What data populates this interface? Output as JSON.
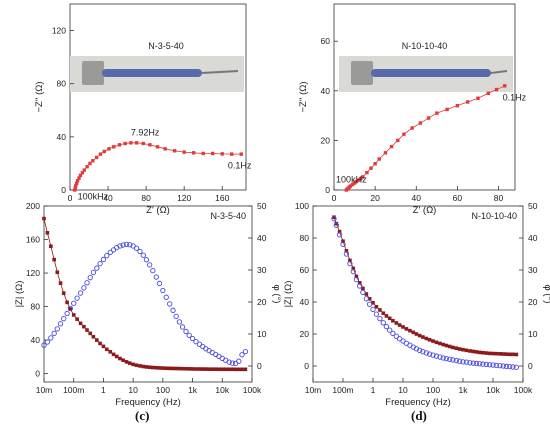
{
  "panels": {
    "c": {
      "label": "(c)"
    },
    "d": {
      "label": "(d)"
    }
  },
  "chart_data": [
    {
      "id": "a",
      "type": "line",
      "title": "N-3-5-40",
      "xlabel": "Z' (Ω)",
      "ylabel": "−Z'' (Ω)",
      "xlim": [
        0,
        185
      ],
      "ylim": [
        0,
        140
      ],
      "xticks": [
        0,
        40,
        80,
        120,
        160
      ],
      "yticks": [
        0,
        40,
        80,
        120
      ],
      "grid": false,
      "annotations": [
        {
          "text": "7.92Hz",
          "x": 64,
          "y": 41
        },
        {
          "text": "0.1Hz",
          "x": 166,
          "y": 16
        },
        {
          "text": "100kHz",
          "x": 8,
          "y": -7
        }
      ],
      "series": [
        {
          "color": "#e23a3a",
          "x": [
            5,
            5.5,
            6,
            7,
            8,
            9.5,
            11,
            13,
            15,
            18,
            21,
            24,
            28,
            32,
            36,
            41,
            46,
            52,
            58,
            64,
            70,
            77,
            84,
            92,
            100,
            110,
            120,
            130,
            140,
            150,
            160,
            170,
            180
          ],
          "y": [
            0,
            1.5,
            3,
            5,
            7,
            9,
            11,
            13,
            15,
            17.5,
            20,
            22,
            24.5,
            27,
            29,
            31,
            32.5,
            34,
            35,
            35.5,
            35.5,
            35,
            34,
            32.5,
            31,
            29.5,
            28.5,
            28,
            27.5,
            27.5,
            27.2,
            27,
            27
          ]
        }
      ],
      "photo": true
    },
    {
      "id": "b",
      "type": "line",
      "title": "N-10-10-40",
      "xlabel": "Z' (Ω)",
      "ylabel": "−Z'' (Ω)",
      "xlim": [
        0,
        88
      ],
      "ylim": [
        0,
        75
      ],
      "xticks": [
        0,
        20,
        40,
        60,
        80
      ],
      "yticks": [
        0,
        20,
        40,
        60
      ],
      "grid": false,
      "annotations": [
        {
          "text": "0.1Hz",
          "x": 82,
          "y": 36
        },
        {
          "text": "100kHz",
          "x": 1,
          "y": 3
        }
      ],
      "series": [
        {
          "color": "#e23a3a",
          "x": [
            6,
            6.5,
            7,
            7.5,
            8,
            9,
            10,
            11,
            12,
            13,
            14,
            16,
            18,
            20,
            22,
            25,
            28,
            31,
            34,
            38,
            42,
            46,
            50,
            55,
            60,
            65,
            70,
            75,
            79,
            83
          ],
          "y": [
            0,
            0.4,
            0.8,
            1.2,
            1.6,
            2.2,
            2.8,
            3.4,
            4,
            4.6,
            5.3,
            7,
            8.8,
            10.6,
            12.5,
            15,
            17.5,
            20,
            22.5,
            25,
            27,
            29,
            31,
            32.5,
            34,
            35.5,
            37,
            39,
            40.5,
            42
          ]
        }
      ],
      "photo": true
    },
    {
      "id": "c",
      "type": "line",
      "title": "N-3-5-40",
      "xlabel": "Frequency (Hz)",
      "ylabel": "|Z| (Ω)",
      "ylabel_right": "φ (°)",
      "xscale": "log",
      "xlim": [
        0.01,
        100000
      ],
      "ylim": [
        -10,
        200
      ],
      "ylim_right": [
        -5,
        50
      ],
      "xticks": [
        "10m",
        "100m",
        "1",
        "10",
        "100",
        "1k",
        "10k",
        "100k"
      ],
      "yticks": [
        0,
        40,
        80,
        120,
        160,
        200
      ],
      "yticks_right": [
        0,
        10,
        20,
        30,
        40,
        50
      ],
      "grid": false,
      "series": [
        {
          "name": "|Z|",
          "axis": "left",
          "color": "#8b1a1a",
          "marker": "square",
          "x": [
            0.01,
            0.013,
            0.017,
            0.022,
            0.028,
            0.036,
            0.046,
            0.06,
            0.077,
            0.1,
            0.13,
            0.17,
            0.22,
            0.28,
            0.36,
            0.46,
            0.6,
            0.77,
            1,
            1.3,
            1.7,
            2.2,
            2.8,
            3.6,
            4.6,
            6,
            7.7,
            10,
            13,
            17,
            22,
            28,
            36,
            46,
            60,
            77,
            100,
            130,
            170,
            220,
            280,
            360,
            460,
            600,
            770,
            1000,
            1300,
            1700,
            2200,
            2800,
            3600,
            4600,
            6000,
            7700,
            10000,
            13000,
            17000,
            22000,
            28000,
            36000,
            46000,
            60000
          ],
          "y": [
            185,
            168,
            152,
            136,
            121,
            108,
            96,
            85,
            77,
            70,
            65,
            60,
            56,
            52,
            48,
            44,
            40,
            36,
            32.5,
            29,
            26,
            23,
            20.5,
            18,
            16,
            14,
            12.5,
            11,
            10,
            9.2,
            8.5,
            8,
            7.6,
            7.3,
            7,
            6.8,
            6.6,
            6.4,
            6.3,
            6.2,
            6.1,
            6,
            5.9,
            5.8,
            5.7,
            5.6,
            5.5,
            5.5,
            5.4,
            5.4,
            5.3,
            5.3,
            5.3,
            5.2,
            5.2,
            5.2,
            5.2,
            5.2,
            5.1,
            5.1,
            5.1,
            5.1
          ]
        },
        {
          "name": "φ",
          "axis": "right",
          "color": "#4a4adf",
          "marker": "circle",
          "x": [
            0.01,
            0.013,
            0.017,
            0.022,
            0.028,
            0.036,
            0.046,
            0.06,
            0.077,
            0.1,
            0.13,
            0.17,
            0.22,
            0.28,
            0.36,
            0.46,
            0.6,
            0.77,
            1,
            1.3,
            1.7,
            2.2,
            2.8,
            3.6,
            4.6,
            6,
            7.7,
            10,
            13,
            17,
            22,
            28,
            36,
            46,
            60,
            77,
            100,
            130,
            170,
            220,
            280,
            360,
            460,
            600,
            770,
            1000,
            1300,
            1700,
            2200,
            2800,
            3600,
            4600,
            6000,
            7700,
            10000,
            13000,
            17000,
            22000,
            28000,
            36000,
            46000,
            60000
          ],
          "y": [
            6.5,
            7.5,
            8.8,
            10.2,
            11.6,
            13.2,
            14.8,
            16.4,
            18,
            19.6,
            21.2,
            22.8,
            24.4,
            26,
            27.6,
            29.2,
            30.6,
            32,
            33.3,
            34.5,
            35.5,
            36.3,
            37,
            37.5,
            37.8,
            38,
            37.9,
            37.5,
            36.8,
            35.8,
            34.6,
            33.2,
            31.6,
            29.8,
            27.8,
            25.8,
            23.6,
            21.5,
            19.4,
            17.4,
            15.5,
            13.8,
            12.2,
            10.8,
            9.6,
            8.6,
            7.6,
            6.8,
            6.1,
            5.4,
            4.8,
            4.2,
            3.6,
            3,
            2.4,
            1.8,
            1.2,
            0.9,
            0.8,
            1.5,
            3.5,
            4.5
          ]
        }
      ]
    },
    {
      "id": "d",
      "type": "line",
      "title": "N-10-10-40",
      "xlabel": "Frequency (Hz)",
      "ylabel": "|Z| (Ω)",
      "ylabel_right": "φ (°)",
      "xscale": "log",
      "xlim": [
        0.01,
        100000
      ],
      "ylim": [
        -10,
        100
      ],
      "ylim_right": [
        -5,
        50
      ],
      "xticks": [
        "10m",
        "100m",
        "1",
        "10",
        "100",
        "1k",
        "10k",
        "100k"
      ],
      "yticks": [
        0,
        20,
        40,
        60,
        80,
        100
      ],
      "yticks_right": [
        0,
        10,
        20,
        30,
        40,
        50
      ],
      "grid": false,
      "series": [
        {
          "name": "|Z|",
          "axis": "left",
          "color": "#8b1a1a",
          "marker": "square",
          "x": [
            0.05,
            0.06,
            0.077,
            0.1,
            0.13,
            0.17,
            0.22,
            0.28,
            0.36,
            0.46,
            0.6,
            0.77,
            1,
            1.3,
            1.7,
            2.2,
            2.8,
            3.6,
            4.6,
            6,
            7.7,
            10,
            13,
            17,
            22,
            28,
            36,
            46,
            60,
            77,
            100,
            130,
            170,
            220,
            280,
            360,
            460,
            600,
            770,
            1000,
            1300,
            1700,
            2200,
            2800,
            3600,
            4600,
            6000,
            7700,
            10000,
            13000,
            17000,
            22000,
            28000,
            36000,
            46000,
            60000
          ],
          "y": [
            93,
            89,
            84,
            78,
            72,
            66,
            61,
            56,
            52,
            48.5,
            45,
            42,
            39.5,
            37,
            35,
            33,
            31.3,
            29.8,
            28.3,
            26.9,
            25.6,
            24.4,
            23.2,
            22.1,
            21,
            20,
            19,
            18.1,
            17.2,
            16.4,
            15.6,
            14.8,
            14.1,
            13.4,
            12.8,
            12.2,
            11.6,
            11.1,
            10.6,
            10.2,
            9.8,
            9.4,
            9.1,
            8.8,
            8.5,
            8.3,
            8.1,
            7.9,
            7.8,
            7.7,
            7.6,
            7.5,
            7.4,
            7.3,
            7.3,
            7.2
          ]
        },
        {
          "name": "φ",
          "axis": "right",
          "color": "#4a4adf",
          "marker": "circle",
          "x": [
            0.05,
            0.06,
            0.077,
            0.1,
            0.13,
            0.17,
            0.22,
            0.28,
            0.36,
            0.46,
            0.6,
            0.77,
            1,
            1.3,
            1.7,
            2.2,
            2.8,
            3.6,
            4.6,
            6,
            7.7,
            10,
            13,
            17,
            22,
            28,
            36,
            46,
            60,
            77,
            100,
            130,
            170,
            220,
            280,
            360,
            460,
            600,
            770,
            1000,
            1300,
            1700,
            2200,
            2800,
            3600,
            4600,
            6000,
            7700,
            10000,
            13000,
            17000,
            22000,
            28000,
            36000,
            46000,
            60000
          ],
          "y": [
            46,
            44,
            41,
            38,
            35,
            32,
            29.5,
            27,
            25,
            23,
            21,
            19.3,
            17.7,
            16.2,
            14.8,
            13.5,
            12.3,
            11.2,
            10.2,
            9.3,
            8.5,
            7.8,
            7.1,
            6.5,
            5.9,
            5.4,
            4.9,
            4.5,
            4.1,
            3.7,
            3.4,
            3.1,
            2.8,
            2.5,
            2.3,
            2.1,
            1.9,
            1.7,
            1.5,
            1.3,
            1.2,
            1,
            0.9,
            0.8,
            0.7,
            0.6,
            0.5,
            0.4,
            0.3,
            0.2,
            0.1,
            0,
            -0.1,
            -0.2,
            -0.3,
            -0.4
          ]
        }
      ]
    }
  ]
}
